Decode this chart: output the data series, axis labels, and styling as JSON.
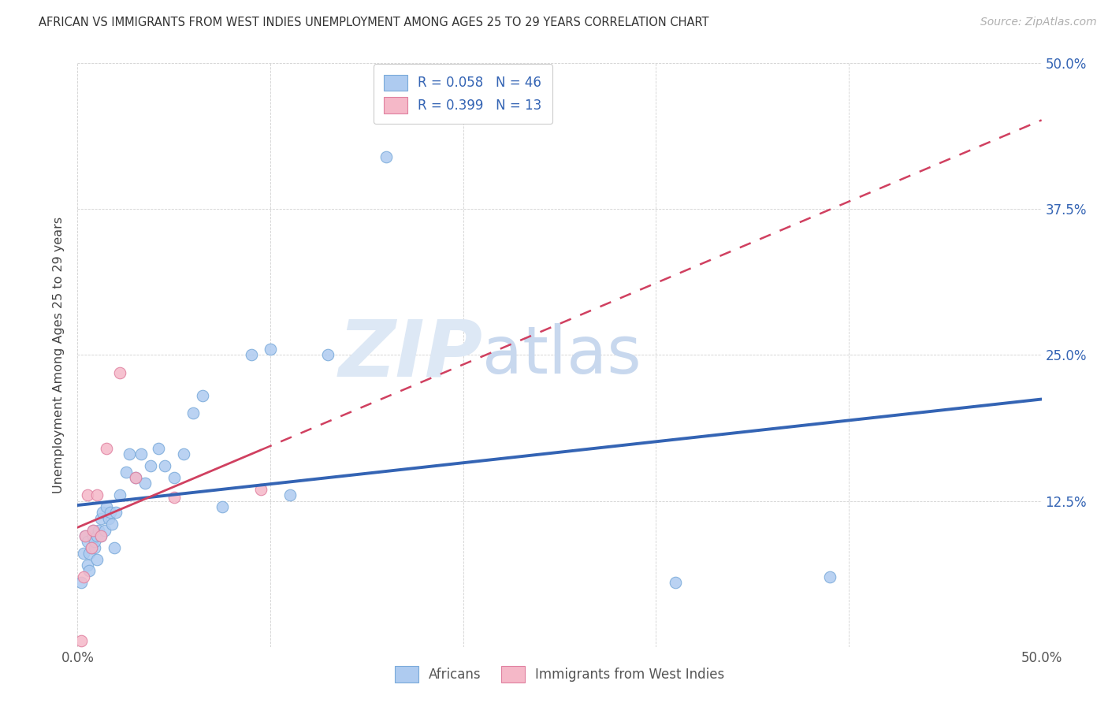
{
  "title": "AFRICAN VS IMMIGRANTS FROM WEST INDIES UNEMPLOYMENT AMONG AGES 25 TO 29 YEARS CORRELATION CHART",
  "source": "Source: ZipAtlas.com",
  "ylabel": "Unemployment Among Ages 25 to 29 years",
  "xlim": [
    0.0,
    0.5
  ],
  "ylim": [
    0.0,
    0.5
  ],
  "xtick_positions": [
    0.0,
    0.1,
    0.2,
    0.3,
    0.4,
    0.5
  ],
  "ytick_positions": [
    0.0,
    0.125,
    0.25,
    0.375,
    0.5
  ],
  "xticklabels": [
    "0.0%",
    "",
    "",
    "",
    "",
    "50.0%"
  ],
  "yticklabels_right": [
    "12.5%",
    "25.0%",
    "37.5%",
    "50.0%"
  ],
  "ytick_right_positions": [
    0.125,
    0.25,
    0.375,
    0.5
  ],
  "africans_R": "0.058",
  "africans_N": "46",
  "west_indies_R": "0.399",
  "west_indies_N": "13",
  "africans_color": "#aecbf0",
  "west_indies_color": "#f5b8c8",
  "trendline_african_color": "#3464b4",
  "trendline_wi_color": "#d04060",
  "legend_text_color": "#3464b4",
  "watermark_color": "#dde8f5",
  "africans_x": [
    0.002,
    0.003,
    0.004,
    0.005,
    0.005,
    0.006,
    0.006,
    0.007,
    0.008,
    0.008,
    0.009,
    0.009,
    0.01,
    0.01,
    0.011,
    0.012,
    0.012,
    0.013,
    0.014,
    0.015,
    0.016,
    0.017,
    0.018,
    0.019,
    0.02,
    0.022,
    0.025,
    0.027,
    0.03,
    0.033,
    0.035,
    0.038,
    0.042,
    0.045,
    0.05,
    0.055,
    0.06,
    0.065,
    0.075,
    0.09,
    0.1,
    0.11,
    0.13,
    0.16,
    0.31,
    0.39
  ],
  "africans_y": [
    0.055,
    0.08,
    0.095,
    0.07,
    0.09,
    0.065,
    0.08,
    0.085,
    0.095,
    0.1,
    0.085,
    0.09,
    0.075,
    0.095,
    0.1,
    0.095,
    0.11,
    0.115,
    0.1,
    0.12,
    0.11,
    0.115,
    0.105,
    0.085,
    0.115,
    0.13,
    0.15,
    0.165,
    0.145,
    0.165,
    0.14,
    0.155,
    0.17,
    0.155,
    0.145,
    0.165,
    0.2,
    0.215,
    0.12,
    0.25,
    0.255,
    0.13,
    0.25,
    0.42,
    0.055,
    0.06
  ],
  "wi_x": [
    0.002,
    0.003,
    0.004,
    0.005,
    0.007,
    0.008,
    0.01,
    0.012,
    0.015,
    0.022,
    0.03,
    0.05,
    0.095
  ],
  "wi_y": [
    0.005,
    0.06,
    0.095,
    0.13,
    0.085,
    0.1,
    0.13,
    0.095,
    0.17,
    0.235,
    0.145,
    0.128,
    0.135
  ]
}
